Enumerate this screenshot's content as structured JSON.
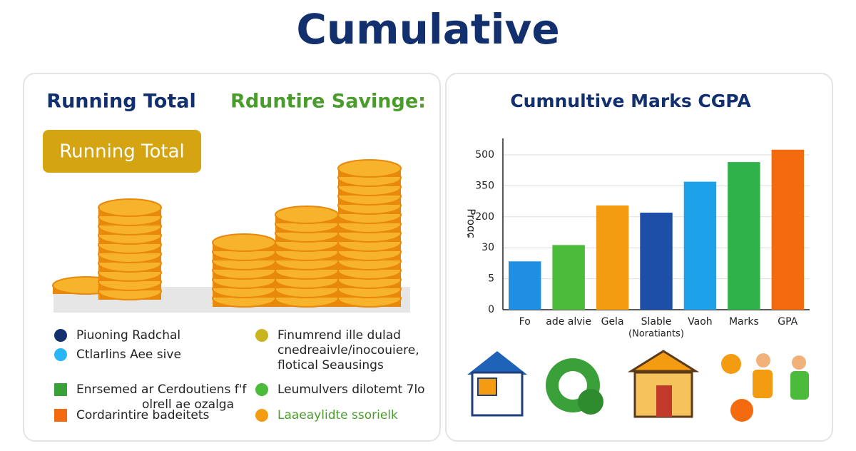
{
  "title": "Cumulative",
  "left": {
    "heading1": "Running Total",
    "heading2": "Rduntire Savinge:",
    "badge": "Running Total",
    "legend": [
      {
        "lines": [
          "Piuoning Radchal"
        ]
      },
      {
        "lines": [
          "Ctlarlins Aee sive"
        ]
      },
      {
        "lines": [
          "Enrsemed ar Cerdoutiens f'f",
          "olrell ae ozalga"
        ]
      },
      {
        "lines": [
          "Cordarintire badeitets"
        ]
      },
      {
        "lines": [
          "Finumrend ille dulad",
          "cnedreaivle/inocouiere,",
          "flotical Seausings"
        ]
      },
      {
        "lines": [
          "Leumulvers dilotemt 7lo"
        ]
      },
      {
        "lines": [
          "Laaeaylidte ssorielk"
        ]
      }
    ]
  },
  "chart_data": {
    "type": "bar",
    "title": "Cumnultive Marks CGPA",
    "y_label": "Proɑɕ",
    "x_label": "(Noratiants)",
    "categories": [
      "Fo",
      "ade alvie",
      "Gela",
      "Slable",
      "Vaoh",
      "Marks",
      "GPA"
    ],
    "values": [
      19,
      45,
      255,
      220,
      370,
      465,
      525
    ],
    "colors": [
      "#1e8fe3",
      "#4cbb3c",
      "#f39c12",
      "#1d4fa8",
      "#1da1e8",
      "#2fb24a",
      "#f46a0e"
    ],
    "ylim": [
      0,
      580
    ],
    "yticks": [
      0,
      5,
      30,
      200,
      350,
      500
    ],
    "grid": true
  }
}
